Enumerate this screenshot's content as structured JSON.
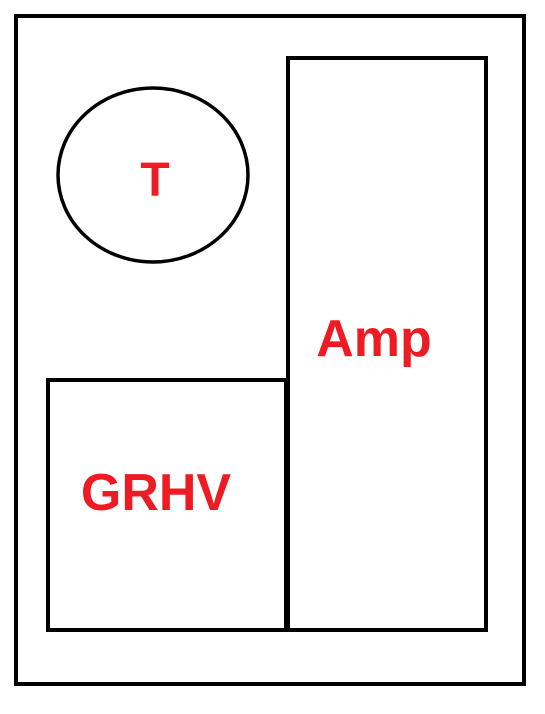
{
  "diagram": {
    "stroke_color": "#000000",
    "label_color": "#ed1c24",
    "background_color": "#ffffff",
    "components": {
      "circle": {
        "label": "T"
      },
      "tall_box": {
        "label": "Amp"
      },
      "lower_box": {
        "label": "GRHV"
      }
    }
  }
}
